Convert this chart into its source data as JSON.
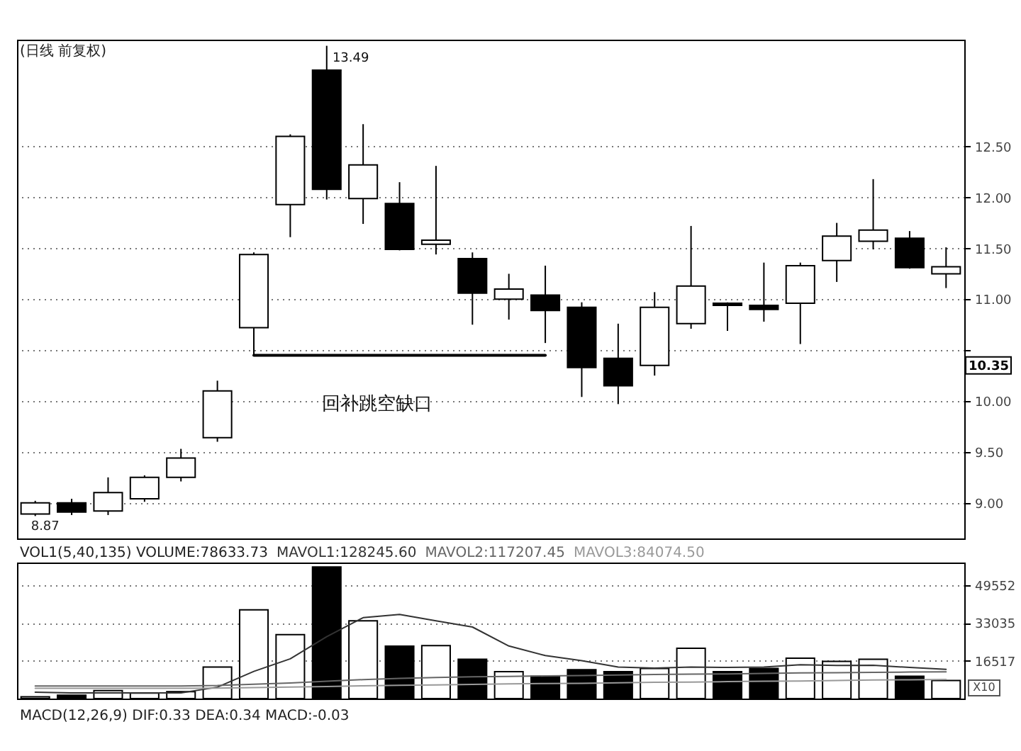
{
  "chart_data": [
    {
      "type": "candlestick",
      "title": "(日线 前复权)",
      "categories": [
        null,
        null,
        null,
        null,
        null,
        null,
        null,
        null,
        null,
        null,
        null,
        null,
        null,
        null,
        null,
        null,
        null,
        null,
        null,
        null,
        null,
        null,
        null,
        null,
        null,
        null
      ],
      "ohlc": [
        [
          8.89,
          9.02,
          8.87,
          9.0
        ],
        [
          9.0,
          9.04,
          8.88,
          8.91
        ],
        [
          8.92,
          9.25,
          8.88,
          9.1
        ],
        [
          9.04,
          9.27,
          9.01,
          9.25
        ],
        [
          9.25,
          9.53,
          9.21,
          9.44
        ],
        [
          9.64,
          10.2,
          9.6,
          10.1
        ],
        [
          10.72,
          11.46,
          10.45,
          11.44
        ],
        [
          11.93,
          12.62,
          11.61,
          12.6
        ],
        [
          13.25,
          13.49,
          11.98,
          12.08
        ],
        [
          11.99,
          12.72,
          11.74,
          12.32
        ],
        [
          11.94,
          12.15,
          11.48,
          11.49
        ],
        [
          11.54,
          12.31,
          11.44,
          11.58
        ],
        [
          11.4,
          11.46,
          10.75,
          11.06
        ],
        [
          11.0,
          11.25,
          10.8,
          11.1
        ],
        [
          11.04,
          11.33,
          10.57,
          10.89
        ],
        [
          10.92,
          10.97,
          10.04,
          10.33
        ],
        [
          10.42,
          10.76,
          9.97,
          10.15
        ],
        [
          10.35,
          11.07,
          10.25,
          10.92
        ],
        [
          10.76,
          11.72,
          10.71,
          11.13
        ],
        [
          10.96,
          10.97,
          10.69,
          10.94
        ],
        [
          10.94,
          11.36,
          10.78,
          10.9
        ],
        [
          10.96,
          11.36,
          10.56,
          11.33
        ],
        [
          11.38,
          11.75,
          11.17,
          11.62
        ],
        [
          11.57,
          12.18,
          11.49,
          11.68
        ],
        [
          11.6,
          11.67,
          11.3,
          11.31
        ],
        [
          11.25,
          11.51,
          11.11,
          11.32
        ]
      ],
      "color": "#000000",
      "colors": [
        "#ffffff",
        "#000000",
        "#ffffff",
        "#ffffff",
        "#ffffff",
        "#ffffff",
        "#ffffff",
        "#ffffff",
        "#000000",
        "#ffffff",
        "#000000",
        "#ffffff",
        "#000000",
        "#ffffff",
        "#000000",
        "#000000",
        "#000000",
        "#ffffff",
        "#ffffff",
        "#000000",
        "#000000",
        "#ffffff",
        "#ffffff",
        "#ffffff",
        "#000000",
        "#ffffff"
      ],
      "series": [
        {
          "type": "line",
          "color": "#000000",
          "values": [
            null,
            null,
            null,
            null,
            null,
            null,
            10.45,
            10.45,
            10.45,
            10.45,
            10.45,
            10.45,
            10.45,
            10.45,
            10.45,
            null,
            null,
            null,
            null,
            null,
            null,
            null,
            null,
            null,
            null,
            null
          ]
        }
      ],
      "ylim": [
        8.65,
        13.55
      ],
      "yticks": [
        {
          "value": 9,
          "label": "9.00"
        },
        {
          "value": 9.5,
          "label": "9.50"
        },
        {
          "value": 10,
          "label": "10.00"
        },
        {
          "value": 10.5,
          "label": null
        },
        {
          "value": 11,
          "label": "11.00"
        },
        {
          "value": 11.5,
          "label": "11.50"
        },
        {
          "value": 12,
          "label": "12.00"
        },
        {
          "value": 12.5,
          "label": "12.50"
        }
      ],
      "grid": "y",
      "tick_labels": "y",
      "annotations": [
        "13.49",
        {
          "text": "8.87",
          "y": 8.87
        },
        {
          "text": "10.35",
          "y": 10.35
        },
        "回补跳空缺口"
      ]
    },
    {
      "type": "bar",
      "title": "VOL1(5,40,135) VOLUME:78633.73",
      "ylabel": "X10",
      "categories": [
        null,
        null,
        null,
        null,
        null,
        null,
        null,
        null,
        null,
        null,
        null,
        null,
        null,
        null,
        null,
        null,
        null,
        null,
        null,
        null,
        null,
        null,
        null,
        null,
        null,
        null
      ],
      "values": [
        800,
        1500,
        3500,
        2400,
        3000,
        13800,
        38800,
        28000,
        57600,
        34000,
        22900,
        23200,
        17200,
        11800,
        9800,
        12600,
        11800,
        13200,
        22000,
        11800,
        13200,
        17700,
        16300,
        17200,
        9800,
        7900
      ],
      "color": "#000000",
      "colors": [
        "#ffffff",
        "#000000",
        "#ffffff",
        "#ffffff",
        "#ffffff",
        "#ffffff",
        "#ffffff",
        "#ffffff",
        "#000000",
        "#ffffff",
        "#000000",
        "#ffffff",
        "#000000",
        "#ffffff",
        "#000000",
        "#000000",
        "#000000",
        "#ffffff",
        "#ffffff",
        "#000000",
        "#000000",
        "#ffffff",
        "#ffffff",
        "#ffffff",
        "#000000",
        "#ffffff"
      ],
      "series": [
        {
          "type": "line",
          "name": "MAVOL1:128245.60",
          "color": "#333333",
          "values": [
            2800,
            2500,
            2500,
            2500,
            2500,
            5000,
            11900,
            17400,
            27100,
            35400,
            36800,
            34000,
            31300,
            23000,
            18800,
            16600,
            13800,
            13300,
            13800,
            13600,
            13800,
            14800,
            14500,
            14600,
            13600,
            12800
          ]
        },
        {
          "type": "line",
          "name": "MAVOL2:117207.45",
          "color": "#666666",
          "values": [
            5500,
            5500,
            5500,
            5500,
            5500,
            5700,
            6300,
            6800,
            7600,
            8300,
            8800,
            9200,
            9500,
            9700,
            9900,
            10100,
            10300,
            10500,
            10700,
            10800,
            11000,
            11200,
            11300,
            11500,
            11600,
            11700
          ]
        },
        {
          "type": "line",
          "name": "MAVOL3:84074.50",
          "color": "#999999",
          "values": [
            4500,
            4500,
            4500,
            4500,
            4500,
            4600,
            4800,
            5000,
            5300,
            5600,
            5800,
            6000,
            6200,
            6400,
            6600,
            6700,
            6900,
            7100,
            7200,
            7400,
            7600,
            7700,
            7900,
            8100,
            8200,
            8400
          ]
        }
      ],
      "ylim": [
        0,
        59500
      ],
      "yticks": [
        16517,
        33035,
        49552
      ],
      "grid": "y",
      "tick_labels": "y",
      "legend": "top left"
    },
    {
      "type": "other",
      "title": "MACD(12,26,9) DIF:0.33 DEA:0.34 MACD:-0.03"
    }
  ]
}
